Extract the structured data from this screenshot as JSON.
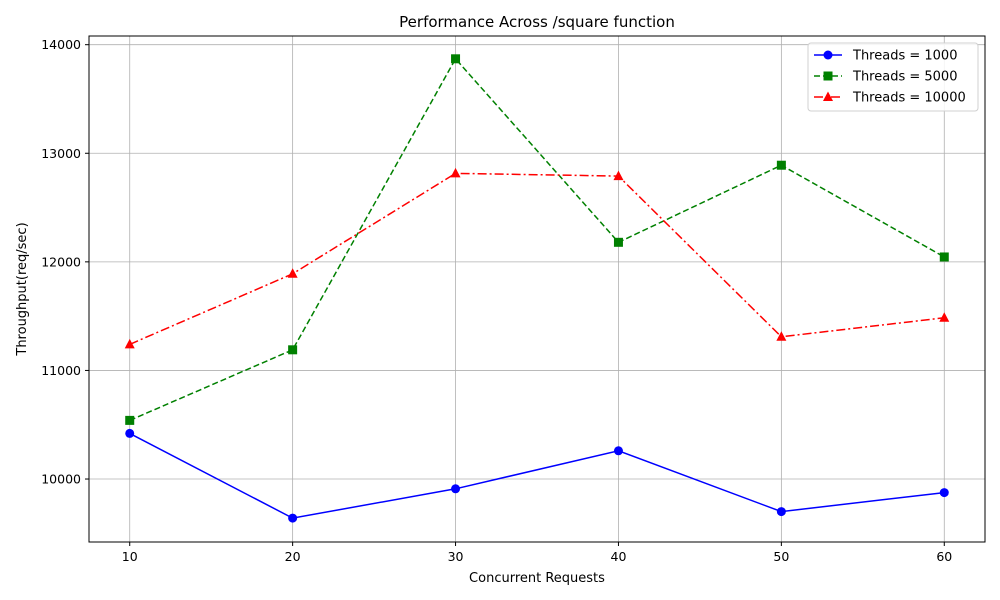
{
  "chart_data": {
    "type": "line",
    "title": "Performance Across /square function",
    "xlabel": "Concurrent Requests",
    "ylabel": "Throughput(req/sec)",
    "x": [
      10,
      20,
      30,
      40,
      50,
      60
    ],
    "xlim": [
      7.5,
      62.5
    ],
    "ylim": [
      9420,
      14080
    ],
    "xticks": [
      10,
      20,
      30,
      40,
      50,
      60
    ],
    "yticks": [
      10000,
      11000,
      12000,
      13000,
      14000
    ],
    "grid": true,
    "legend_position": "top-right",
    "series": [
      {
        "name": "Threads = 1000",
        "values": [
          10420,
          9640,
          9910,
          10260,
          9700,
          9875
        ],
        "color": "#0000ff",
        "marker": "circle",
        "linestyle": "solid"
      },
      {
        "name": "Threads = 5000",
        "values": [
          10540,
          11190,
          13870,
          12180,
          12890,
          12045
        ],
        "color": "#008000",
        "marker": "square",
        "linestyle": "dashed"
      },
      {
        "name": "Threads = 10000",
        "values": [
          11240,
          11890,
          12815,
          12790,
          11310,
          11485
        ],
        "color": "#ff0000",
        "marker": "triangle",
        "linestyle": "dashdot"
      }
    ]
  }
}
